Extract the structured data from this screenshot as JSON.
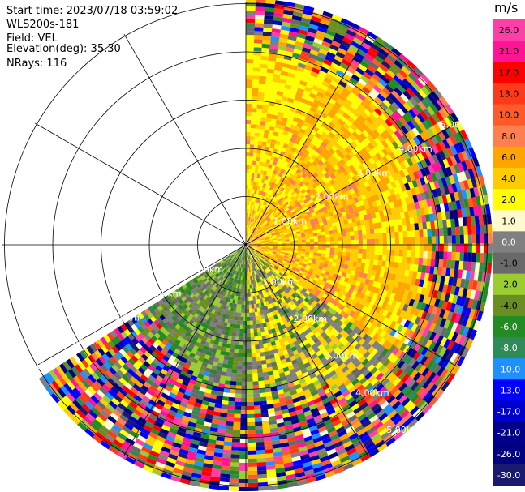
{
  "header": {
    "start_time": "Start time: 2023/07/18 03:59:02",
    "instrument": "WLS200s-181",
    "field": "Field: VEL",
    "elevation": "Elevation(deg): 35.30",
    "nrays": "NRays: 116"
  },
  "range_labels": [
    "1.00km",
    "2.00km",
    "3.00km",
    "4.00km",
    "5.00km"
  ],
  "colorbar": {
    "unit": "m/s",
    "ticks": [
      "26.0",
      "21.0",
      "17.0",
      "13.0",
      "10.0",
      "8.0",
      "6.0",
      "4.0",
      "2.0",
      "1.0",
      "0.0",
      "-1.0",
      "-2.0",
      "-4.0",
      "-6.0",
      "-8.0",
      "-10.0",
      "-13.0",
      "-17.0",
      "-21.0",
      "-26.0",
      "-30.0"
    ],
    "colors": [
      "#ff3fa8",
      "#ff1493",
      "#ff0000",
      "#ff3a1a",
      "#ff5a2a",
      "#ff7f50",
      "#ffa500",
      "#ffcc00",
      "#ffff00",
      "#fffacd",
      "#808080",
      "#696969",
      "#9acd32",
      "#6b8e23",
      "#228b22",
      "#2e8b57",
      "#1e90ff",
      "#0000ff",
      "#0000cd",
      "#00008b",
      "#000080",
      "#191970"
    ]
  }
}
